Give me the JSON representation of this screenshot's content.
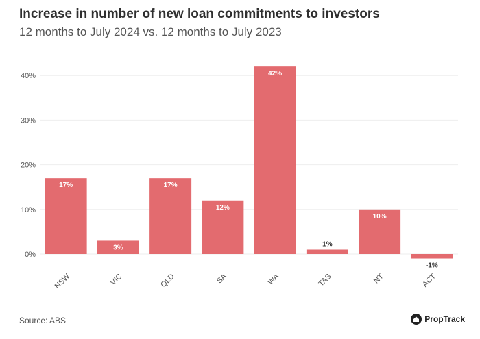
{
  "title": "Increase in number of new loan commitments to investors",
  "subtitle": "12 months to July 2024 vs. 12 months to July 2023",
  "source": "Source: ABS",
  "brand": {
    "name": "PropTrack",
    "logo_icon": "proptrack-logo-icon"
  },
  "colors": {
    "bar": "#e36b6f",
    "grid": "#eeeeee",
    "text": "#555555"
  },
  "chart_data": {
    "type": "bar",
    "categories": [
      "NSW",
      "VIC",
      "QLD",
      "SA",
      "WA",
      "TAS",
      "NT",
      "ACT"
    ],
    "values": [
      17,
      3,
      17,
      12,
      42,
      1,
      10,
      -1
    ],
    "data_labels": [
      "17%",
      "3%",
      "17%",
      "12%",
      "42%",
      "1%",
      "10%",
      "-1%"
    ],
    "yticks": [
      0,
      10,
      20,
      30,
      40
    ],
    "ytick_labels": [
      "0%",
      "10%",
      "20%",
      "30%",
      "40%"
    ],
    "ylim": [
      -1.5,
      45
    ],
    "grid": true,
    "legend": "none"
  }
}
